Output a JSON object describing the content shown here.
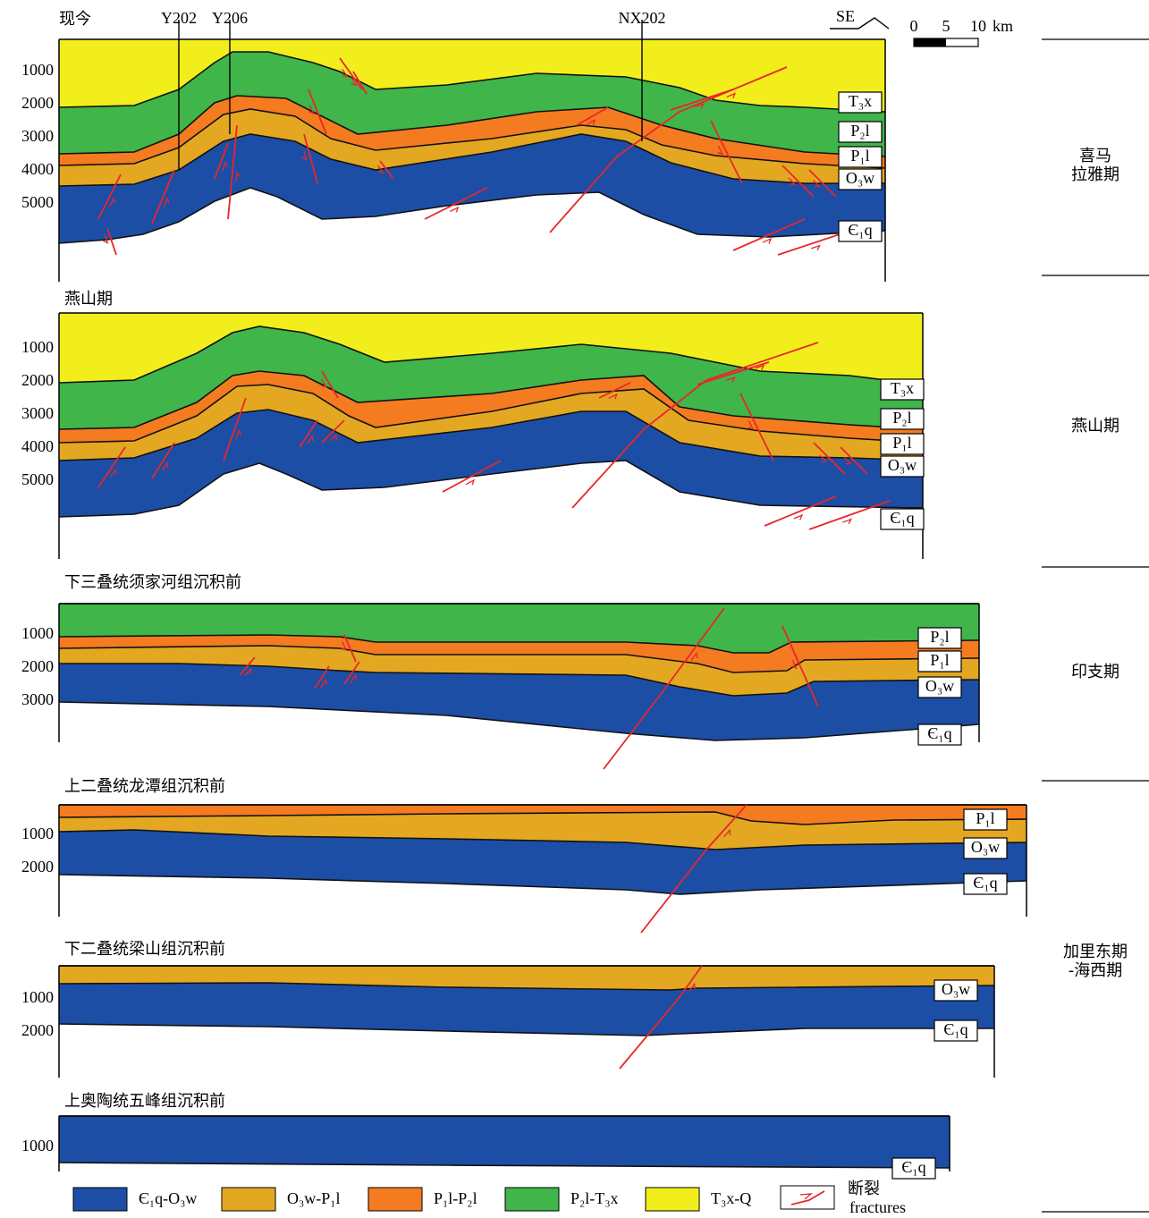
{
  "wells": [
    "Y202",
    "Y206",
    "NX202"
  ],
  "orientation": "SE",
  "scale": {
    "ticks": [
      0,
      5,
      10
    ],
    "unit": "km"
  },
  "panels": [
    {
      "title": "现今",
      "depths": [
        1000,
        2000,
        3000,
        4000,
        5000
      ],
      "layers": [
        "T₃x",
        "P₂l",
        "P₁l",
        "O₃w",
        "Є₁q"
      ]
    },
    {
      "title": "燕山期",
      "depths": [
        1000,
        2000,
        3000,
        4000,
        5000
      ],
      "layers": [
        "T₃x",
        "P₂l",
        "P₁l",
        "O₃w",
        "Є₁q"
      ]
    },
    {
      "title": "下三叠统须家河组沉积前",
      "depths": [
        1000,
        2000,
        3000
      ],
      "layers": [
        "P₂l",
        "P₁l",
        "O₃w",
        "Є₁q"
      ]
    },
    {
      "title": "上二叠统龙潭组沉积前",
      "depths": [
        1000,
        2000
      ],
      "layers": [
        "P₁l",
        "O₃w",
        "Є₁q"
      ]
    },
    {
      "title": "下二叠统梁山组沉积前",
      "depths": [
        1000,
        2000
      ],
      "layers": [
        "O₃w",
        "Є₁q"
      ]
    },
    {
      "title": "上奥陶统五峰组沉积前",
      "depths": [
        1000
      ],
      "layers": [
        "Є₁q"
      ]
    }
  ],
  "periods": [
    [
      "喜马",
      "拉雅期"
    ],
    [
      "燕山期"
    ],
    [
      "印支期"
    ],
    [
      "加里东期",
      "-海西期"
    ]
  ],
  "legend": {
    "items": [
      "Є₁q-O₃w",
      "O₃w-P₁l",
      "P₁l-P₂l",
      "P₂l-T₃x",
      "T₃x-Q"
    ],
    "fracture": [
      "断裂",
      "fractures"
    ]
  }
}
